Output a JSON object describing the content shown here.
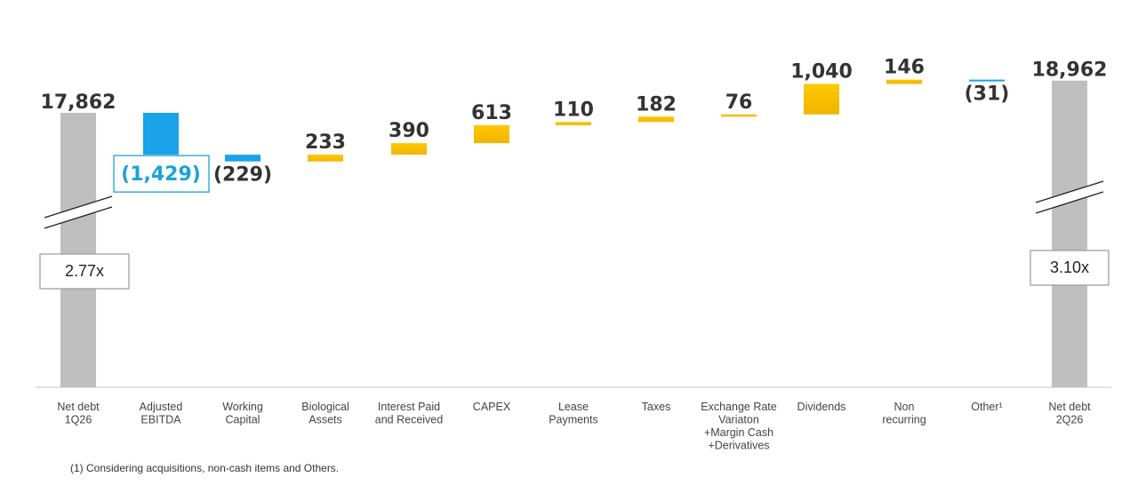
{
  "chart_data": {
    "type": "bar",
    "subtype": "waterfall",
    "title": "",
    "xlabel": "",
    "ylabel": "",
    "colors": {
      "total": "#bfbfbf",
      "decrease": "#1aa3e8",
      "increase": "#f0b400",
      "highlight": "#1aa3d9",
      "axis": "#d0d0d0"
    },
    "bars": [
      {
        "category": "Net debt\n1Q26",
        "value": 17862,
        "label": "17,862",
        "kind": "total"
      },
      {
        "category": "Adjusted\nEBITDA",
        "value": -1429,
        "label": "(1,429)",
        "kind": "decrease",
        "highlight": true
      },
      {
        "category": "Working\nCapital",
        "value": -229,
        "label": "(229)",
        "kind": "decrease"
      },
      {
        "category": "Biological\nAssets",
        "value": 233,
        "label": "233",
        "kind": "increase"
      },
      {
        "category": "Interest Paid\nand Received",
        "value": 390,
        "label": "390",
        "kind": "increase"
      },
      {
        "category": "CAPEX",
        "value": 613,
        "label": "613",
        "kind": "increase"
      },
      {
        "category": "Lease\nPayments",
        "value": 110,
        "label": "110",
        "kind": "increase"
      },
      {
        "category": "Taxes",
        "value": 182,
        "label": "182",
        "kind": "increase"
      },
      {
        "category": "Exchange Rate\nVariaton\n+Margin Cash\n+Derivatives",
        "value": 76,
        "label": "76",
        "kind": "increase"
      },
      {
        "category": "Dividends",
        "value": 1040,
        "label": "1,040",
        "kind": "increase"
      },
      {
        "category": "Non\nrecurring",
        "value": 146,
        "label": "146",
        "kind": "increase"
      },
      {
        "category": "Other¹",
        "value": -31,
        "label": "(31)",
        "kind": "decrease"
      },
      {
        "category": "Net debt\n2Q26",
        "value": 18962,
        "label": "18,962",
        "kind": "total"
      }
    ],
    "leverage": [
      {
        "bar": 0,
        "text": "2.77x"
      },
      {
        "bar": 12,
        "text": "3.10x"
      }
    ],
    "axis_break": true,
    "grid": false,
    "legend": "none"
  },
  "footnote": "(1) Considering acquisitions, non-cash items and Others."
}
